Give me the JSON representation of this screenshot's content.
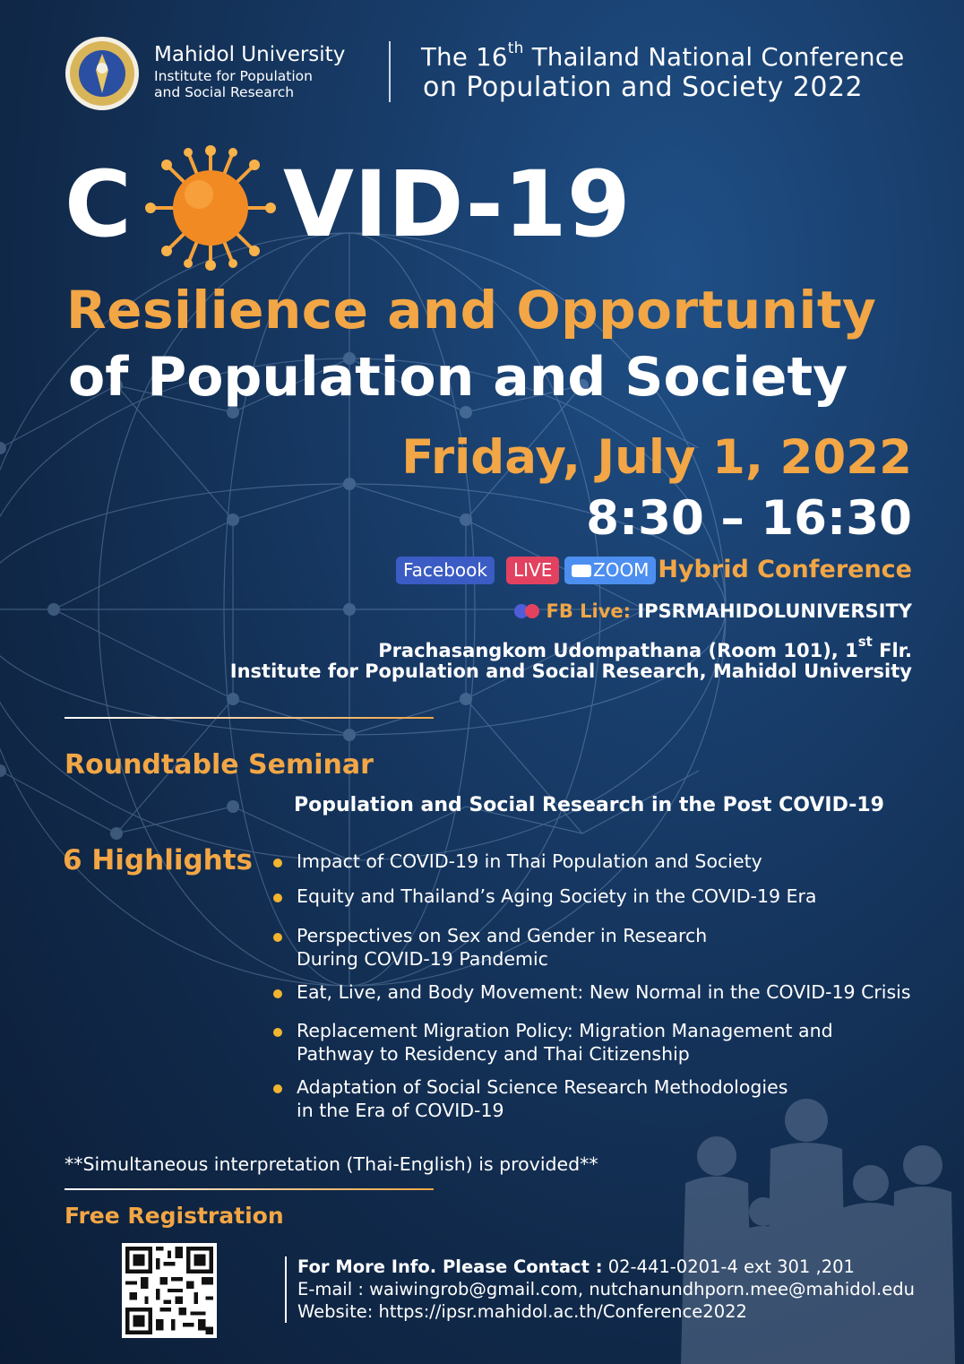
{
  "header": {
    "university_name": "Mahidol University",
    "institute_line1": "Institute for Population",
    "institute_line2": "and Social Research",
    "conference_line1_pre": "The 16",
    "conference_line1_sup": "th",
    "conference_line1_post": " Thailand National Conference",
    "conference_line2": "on Population and Society 2022"
  },
  "title": {
    "covid_c": "C",
    "covid_rest": "VID-19",
    "line1": "Resilience and Opportunity",
    "line2": "of Population and Society"
  },
  "event": {
    "date": "Friday, July 1, 2022",
    "time": "8:30 – 16:30",
    "badge_facebook": "Facebook",
    "badge_live": "LIVE",
    "badge_zoom": "ZOOM",
    "format": "Hybrid Conference",
    "fb_live_label": "FB Live:",
    "fb_live_page": " IPSRMAHIDOLUNIVERSITY",
    "room_pre": "Prachasangkom Udompathana (Room 101), 1",
    "room_sup": "st",
    "room_post": " Flr.",
    "institute": "Institute for Population and Social Research, Mahidol University"
  },
  "seminar": {
    "heading": "Roundtable Seminar",
    "subtitle": "Population and Social Research in the Post COVID-19",
    "highlights_heading": "6 Highlights",
    "highlights": [
      [
        "Impact of COVID-19 in Thai Population and Society"
      ],
      [
        "Equity and Thailand’s Aging Society in the COVID-19 Era"
      ],
      [
        "Perspectives on Sex and Gender in Research",
        "During COVID-19 Pandemic"
      ],
      [
        "Eat, Live, and Body Movement: New Normal in the COVID-19 Crisis"
      ],
      [
        "Replacement Migration Policy: Migration Management and",
        "Pathway to Residency and Thai Citizenship"
      ],
      [
        "Adaptation of Social Science Research Methodologies",
        "in the Era of COVID-19"
      ]
    ]
  },
  "footer": {
    "interpretation": "**Simultaneous interpretation (Thai-English) is provided**",
    "free_registration": "Free Registration",
    "contact_label": "For More Info. Please Contact :",
    "contact_phone": " 02-441-0201-4 ext 301 ,201",
    "email_line": "E-mail : waiwingrob@gmail.com, nutchanundhporn.mee@mahidol.edu",
    "website_line": "Website: https://ipsr.mahidol.ac.th/Conference2022"
  },
  "colors": {
    "accent_orange": "#f2a645",
    "background": "#173a66",
    "facebook_badge": "#3b5cc4",
    "live_badge": "#e2425f",
    "zoom_badge": "#4d8ff0"
  }
}
